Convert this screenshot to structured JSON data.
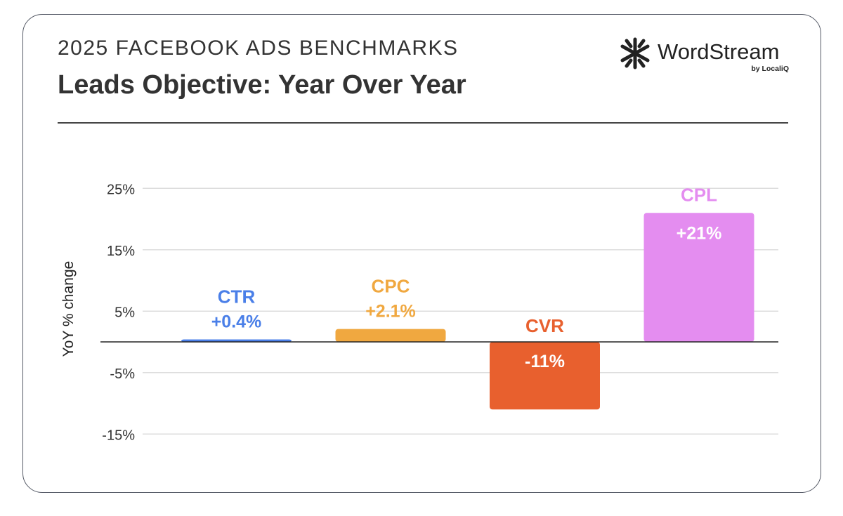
{
  "header": {
    "supertitle": "2025 FACEBOOK ADS BENCHMARKS",
    "title": "Leads Objective: Year Over Year"
  },
  "logo": {
    "name": "WordStream",
    "sub": "by LocaliQ",
    "icon": "wordstream-asterisk-icon"
  },
  "chart_data": {
    "type": "bar",
    "title": "Leads Objective: Year Over Year",
    "xlabel": "",
    "ylabel": "YoY % change",
    "yticks": [
      "25%",
      "15%",
      "5%",
      "-5%",
      "-15%"
    ],
    "ylim": [
      -18,
      27
    ],
    "grid": true,
    "legend": "none",
    "categories": [
      "CTR",
      "CPC",
      "CVR",
      "CPL"
    ],
    "values": [
      0.4,
      2.1,
      -11,
      21
    ],
    "value_labels": [
      "+0.4%",
      "+2.1%",
      "-11%",
      "+21%"
    ],
    "colors": [
      "#4a7fe8",
      "#f0a840",
      "#e8602e",
      "#e48df0"
    ]
  }
}
